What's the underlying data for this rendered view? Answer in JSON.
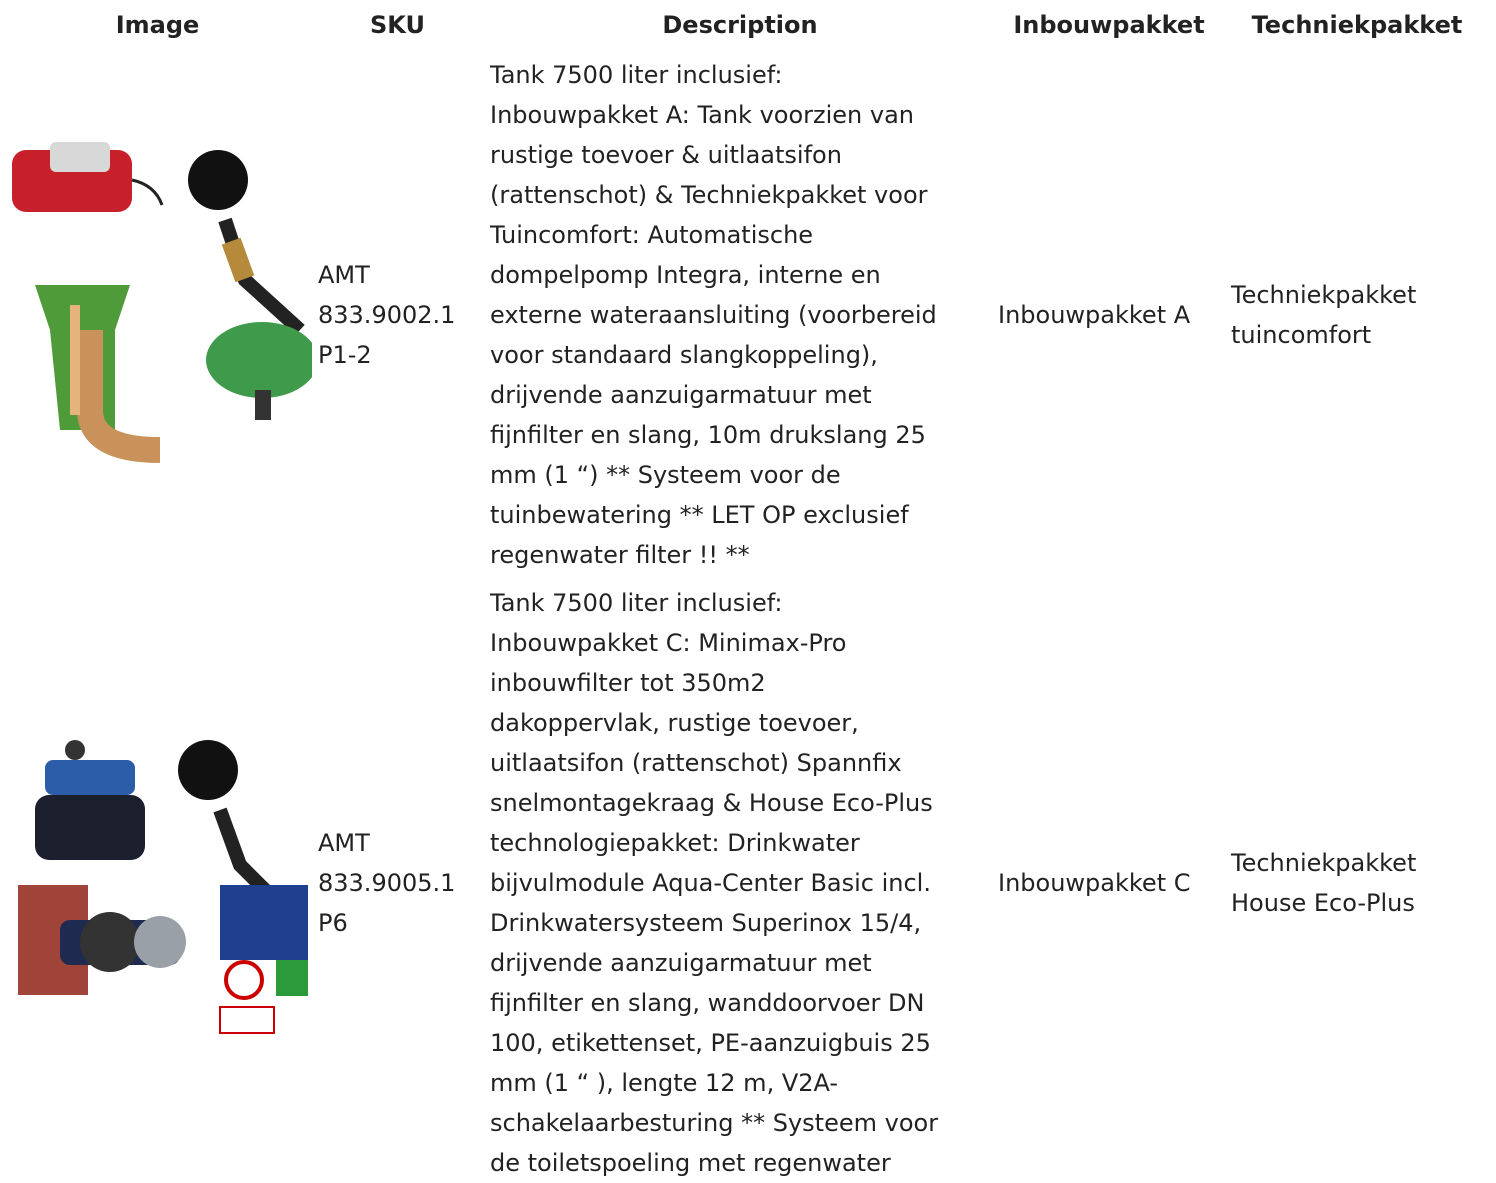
{
  "table": {
    "headers": [
      "Image",
      "SKU",
      "Description",
      "Inbouwpakket",
      "Techniekpakket"
    ],
    "rows": [
      {
        "sku": [
          "AMT",
          "833.9002.1",
          "P1-2"
        ],
        "description": [
          "Tank 7500 liter inclusief:",
          "Inbouwpakket A: Tank voorzien van",
          "rustige toevoer & uitlaatsifon",
          "(rattenschot) & Techniekpakket voor",
          "Tuincomfort: Automatische",
          "dompelpomp Integra, interne en",
          "externe wateraansluiting (voorbereid",
          "voor standaard slangkoppeling),",
          "drijvende aanzuigarmatuur met",
          "fijnfilter en slang, 10m drukslang 25",
          "mm (1 “) ** Systeem voor de",
          "tuinbewatering ** LET OP exclusief",
          "regenwater filter !! **"
        ],
        "inbouwpakket": [
          "Inbouwpakket A"
        ],
        "techniekpakket": [
          "Techniekpakket",
          "tuincomfort"
        ]
      },
      {
        "sku": [
          "AMT",
          "833.9005.1",
          "P6"
        ],
        "description": [
          "Tank 7500 liter inclusief:",
          "Inbouwpakket C: Minimax-Pro",
          "inbouwfilter tot 350m2",
          "dakoppervlak, rustige toevoer,",
          "uitlaatsifon (rattenschot) Spannfix",
          "snelmontagekraag & House Eco-Plus",
          "technologiepakket: Drinkwater",
          "bijvulmodule Aqua-Center Basic incl.",
          "Drinkwatersysteem Superinox 15/4,",
          "drijvende aanzuigarmatuur met",
          "fijnfilter en slang, wanddoorvoer DN",
          "100, etikettenset, PE-aanzuigbuis 25",
          "mm (1 “ ), lengte 12 m, V2A-",
          "schakelaarbesturing ** Systeem voor",
          "de toiletspoeling met regenwater"
        ],
        "inbouwpakket": [
          "Inbouwpakket C"
        ],
        "techniekpakket": [
          "Techniekpakket",
          "House Eco-Plus"
        ]
      }
    ]
  }
}
